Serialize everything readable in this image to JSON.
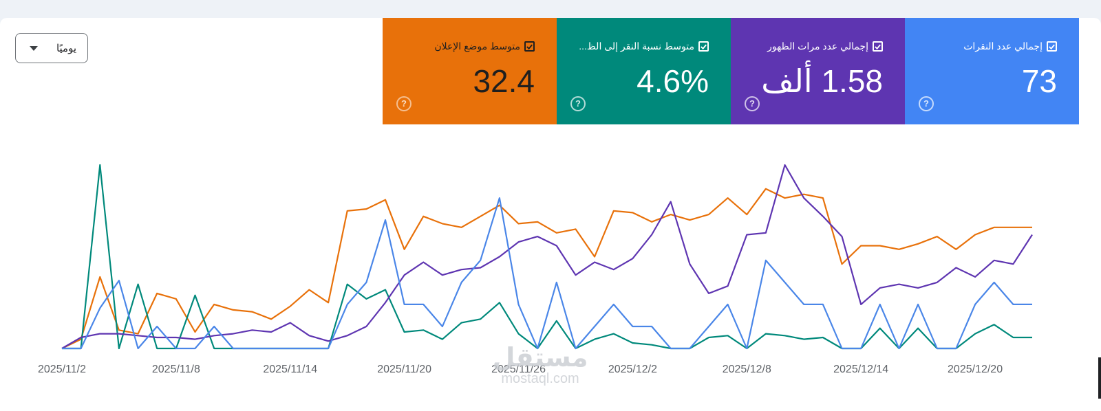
{
  "dropdown": {
    "label": "يوميًا"
  },
  "cards": [
    {
      "key": "avg_position",
      "title": "متوسط موضع الإعلان",
      "value": "32.4",
      "color": "#e8710a",
      "text_color": "#1f1f1f"
    },
    {
      "key": "ctr",
      "title": "متوسط نسبة النقر إلى الظ...",
      "value": "4.6%",
      "color": "#00897b",
      "text_color": "#ffffff"
    },
    {
      "key": "impressions",
      "title": "إجمالي عدد مرات الظهور",
      "value": "1.58 ألف",
      "color": "#5e35b1",
      "text_color": "#ffffff"
    },
    {
      "key": "clicks",
      "title": "إجمالي عدد النقرات",
      "value": "73",
      "color": "#4285f4",
      "text_color": "#ffffff"
    }
  ],
  "help_symbol": "?",
  "watermark": {
    "arabic": "مستقل",
    "latin": "mostaql.com"
  },
  "chart_data": {
    "type": "line",
    "x_tick_labels": [
      "2025/11/2",
      "2025/11/8",
      "2025/11/14",
      "2025/11/20",
      "2025/11/26",
      "2025/12/2",
      "2025/12/8",
      "2025/12/14",
      "2025/12/20"
    ],
    "x_tick_index": [
      0,
      6,
      12,
      18,
      24,
      30,
      36,
      42,
      48
    ],
    "n_points": 52,
    "ylim": [
      0,
      100
    ],
    "grid": false,
    "series": [
      {
        "name": "متوسط موضع الإعلان",
        "color": "#e8710a",
        "values": [
          0,
          5,
          39,
          10,
          8,
          30,
          27,
          9,
          24,
          21,
          20,
          16,
          23,
          32,
          25,
          75,
          76,
          81,
          54,
          72,
          68,
          66,
          72,
          78,
          68,
          69,
          63,
          65,
          50,
          75,
          74,
          69,
          73,
          70,
          73,
          82,
          73,
          87,
          82,
          84,
          82,
          46,
          56,
          56,
          54,
          57,
          61,
          54,
          62,
          66,
          66,
          66
        ]
      },
      {
        "name": "متوسط نسبة النقر إلى الظ...",
        "color": "#00897b",
        "values": [
          0,
          0,
          100,
          0,
          35,
          0,
          0,
          29,
          0,
          0,
          0,
          0,
          0,
          0,
          0,
          35,
          27,
          32,
          9,
          10,
          5,
          14,
          16,
          25,
          8,
          0,
          15,
          0,
          5,
          8,
          3,
          2,
          0,
          0,
          6,
          7,
          0,
          8,
          7,
          5,
          6,
          0,
          0,
          11,
          0,
          11,
          0,
          0,
          8,
          13,
          6,
          6
        ]
      },
      {
        "name": "إجمالي عدد مرات الظهور",
        "color": "#5e35b1",
        "values": [
          0,
          6,
          8,
          8,
          7,
          6,
          6,
          5,
          7,
          8,
          10,
          9,
          14,
          7,
          4,
          7,
          12,
          25,
          40,
          47,
          40,
          43,
          44,
          50,
          58,
          61,
          56,
          40,
          47,
          43,
          49,
          62,
          80,
          46,
          30,
          34,
          62,
          63,
          100,
          82,
          72,
          61,
          24,
          33,
          35,
          33,
          36,
          44,
          39,
          48,
          46,
          62
        ]
      },
      {
        "name": "إجمالي عدد النقرات",
        "color": "#4a86e8",
        "values": [
          0,
          0,
          22,
          37,
          0,
          12,
          0,
          0,
          12,
          0,
          0,
          0,
          0,
          0,
          0,
          24,
          36,
          70,
          24,
          24,
          12,
          36,
          48,
          82,
          24,
          0,
          36,
          0,
          12,
          24,
          12,
          12,
          0,
          0,
          12,
          24,
          0,
          48,
          36,
          24,
          24,
          0,
          0,
          24,
          0,
          24,
          0,
          0,
          24,
          36,
          24,
          24
        ]
      }
    ]
  }
}
